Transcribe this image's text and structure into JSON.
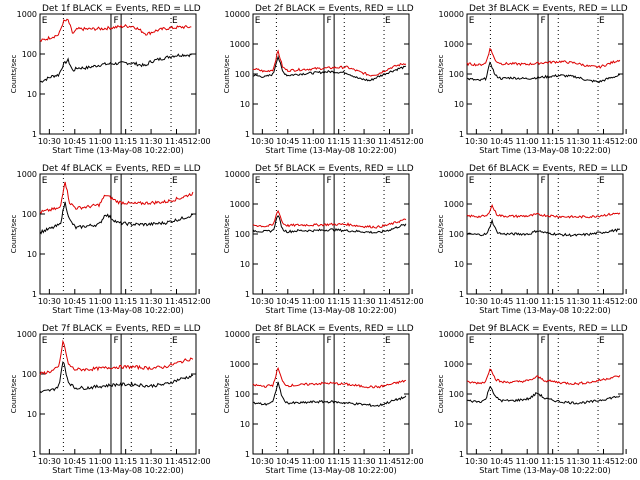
{
  "chart_data": [
    {
      "type": "line",
      "title": "Det 1f BLACK = Events, RED = LLD",
      "xlabel": "Start Time (13-May-08 10:22:00)",
      "ylabel": "Counts/sec",
      "yscale": "log",
      "ylim": [
        1,
        1000
      ],
      "ytick_labels": [
        "1",
        "10",
        "100",
        "1000"
      ],
      "xtick_labels": [
        "10:30",
        "10:45",
        "11:00",
        "11:15",
        "11:30",
        "11:45",
        "12:00"
      ],
      "flags": [
        "E",
        "F",
        "E"
      ],
      "series": [
        {
          "color": "#000000",
          "x": [
            0,
            8,
            12,
            15,
            18,
            21,
            24,
            30,
            40,
            55,
            60,
            68,
            70,
            74,
            80,
            85,
            90,
            97
          ],
          "y": [
            20,
            28,
            30,
            55,
            70,
            38,
            45,
            45,
            55,
            60,
            58,
            50,
            62,
            70,
            80,
            90,
            95,
            95
          ]
        },
        {
          "color": "#dd0000",
          "x": [
            0,
            8,
            12,
            15,
            18,
            21,
            24,
            30,
            40,
            55,
            60,
            68,
            70,
            74,
            80,
            85,
            90,
            97
          ],
          "y": [
            210,
            270,
            300,
            650,
            700,
            320,
            420,
            420,
            430,
            500,
            490,
            320,
            330,
            380,
            430,
            450,
            470,
            470
          ]
        }
      ]
    },
    {
      "type": "line",
      "title": "Det 2f BLACK = Events, RED = LLD",
      "xlabel": "Start Time (13-May-08 10:22:00)",
      "ylabel": "Counts/sec",
      "yscale": "log",
      "ylim": [
        1,
        10000
      ],
      "ytick_labels": [
        "1",
        "10",
        "100",
        "1000",
        "10000"
      ],
      "xtick_labels": [
        "10:30",
        "10:45",
        "11:00",
        "11:15",
        "11:30",
        "11:45",
        "12:00"
      ],
      "flags": [
        "E",
        "F",
        "E"
      ],
      "series": [
        {
          "color": "#000000",
          "x": [
            0,
            8,
            13,
            16,
            19,
            22,
            30,
            40,
            50,
            60,
            68,
            75,
            80,
            88,
            95,
            98
          ],
          "y": [
            90,
            80,
            100,
            400,
            120,
            90,
            100,
            110,
            120,
            110,
            70,
            60,
            80,
            120,
            160,
            170
          ]
        },
        {
          "color": "#dd0000",
          "x": [
            0,
            8,
            13,
            16,
            19,
            22,
            30,
            40,
            50,
            60,
            68,
            75,
            80,
            88,
            95,
            98
          ],
          "y": [
            150,
            120,
            140,
            600,
            170,
            130,
            140,
            150,
            160,
            170,
            120,
            90,
            100,
            160,
            210,
            230
          ]
        }
      ]
    },
    {
      "type": "line",
      "title": "Det 3f BLACK = Events, RED = LLD",
      "xlabel": "Start Time (13-May-08 10:22:00)",
      "ylabel": "Counts/sec",
      "yscale": "log",
      "ylim": [
        1,
        10000
      ],
      "ytick_labels": [
        "1",
        "10",
        "100",
        "1000",
        "10000"
      ],
      "xtick_labels": [
        "10:30",
        "10:45",
        "11:00",
        "11:15",
        "11:30",
        "11:45",
        "12:00"
      ],
      "flags": [
        "E",
        "F",
        "E"
      ],
      "series": [
        {
          "color": "#000000",
          "x": [
            0,
            8,
            12,
            15,
            18,
            22,
            28,
            38,
            50,
            60,
            70,
            78,
            85,
            92,
            98
          ],
          "y": [
            70,
            60,
            70,
            250,
            90,
            70,
            75,
            70,
            80,
            90,
            80,
            60,
            55,
            75,
            90
          ]
        },
        {
          "color": "#dd0000",
          "x": [
            0,
            8,
            12,
            15,
            18,
            22,
            28,
            38,
            50,
            60,
            70,
            78,
            85,
            92,
            98
          ],
          "y": [
            220,
            200,
            230,
            750,
            280,
            220,
            220,
            210,
            240,
            260,
            230,
            180,
            170,
            230,
            300
          ]
        }
      ]
    },
    {
      "type": "line",
      "title": "Det 4f BLACK = Events, RED = LLD",
      "xlabel": "Start Time (13-May-08 10:22:00)",
      "ylabel": "Counts/sec",
      "yscale": "log",
      "ylim": [
        1,
        1000
      ],
      "ytick_labels": [
        "1",
        "10",
        "100",
        "1000"
      ],
      "xtick_labels": [
        "10:30",
        "10:45",
        "11:00",
        "11:15",
        "11:30",
        "11:45",
        "12:00"
      ],
      "flags": [
        "E",
        "F",
        "E"
      ],
      "series": [
        {
          "color": "#000000",
          "x": [
            0,
            8,
            13,
            16,
            19,
            23,
            30,
            38,
            42,
            50,
            60,
            70,
            80,
            90,
            98
          ],
          "y": [
            35,
            45,
            55,
            200,
            70,
            45,
            50,
            55,
            100,
            60,
            55,
            55,
            60,
            75,
            95
          ]
        },
        {
          "color": "#dd0000",
          "x": [
            0,
            8,
            13,
            16,
            19,
            23,
            30,
            38,
            42,
            50,
            60,
            70,
            80,
            90,
            98
          ],
          "y": [
            110,
            130,
            140,
            700,
            190,
            140,
            150,
            170,
            300,
            200,
            180,
            190,
            200,
            250,
            330
          ]
        }
      ]
    },
    {
      "type": "line",
      "title": "Det 5f BLACK = Events, RED = LLD",
      "xlabel": "Start Time (13-May-08 10:22:00)",
      "ylabel": "Counts/sec",
      "yscale": "log",
      "ylim": [
        1,
        10000
      ],
      "ytick_labels": [
        "1",
        "10",
        "100",
        "1000",
        "10000"
      ],
      "xtick_labels": [
        "10:30",
        "10:45",
        "11:00",
        "11:15",
        "11:30",
        "11:45",
        "12:00"
      ],
      "flags": [
        "E",
        "F",
        "E"
      ],
      "series": [
        {
          "color": "#000000",
          "x": [
            0,
            8,
            13,
            16,
            19,
            22,
            30,
            40,
            50,
            60,
            70,
            80,
            88,
            95,
            98
          ],
          "y": [
            130,
            120,
            130,
            450,
            140,
            120,
            130,
            130,
            140,
            130,
            120,
            110,
            140,
            190,
            200
          ]
        },
        {
          "color": "#dd0000",
          "x": [
            0,
            8,
            13,
            16,
            19,
            22,
            30,
            40,
            50,
            60,
            70,
            80,
            88,
            95,
            98
          ],
          "y": [
            200,
            180,
            200,
            650,
            230,
            190,
            200,
            200,
            210,
            210,
            180,
            170,
            210,
            280,
            300
          ]
        }
      ]
    },
    {
      "type": "line",
      "title": "Det 6f BLACK = Events, RED = LLD",
      "xlabel": "Start Time (13-May-08 10:22:00)",
      "ylabel": "Counts/sec",
      "yscale": "log",
      "ylim": [
        1,
        10000
      ],
      "ytick_labels": [
        "1",
        "10",
        "100",
        "1000",
        "10000"
      ],
      "xtick_labels": [
        "10:30",
        "10:45",
        "11:00",
        "11:15",
        "11:30",
        "11:45",
        "12:00"
      ],
      "flags": [
        "E",
        "F",
        "E"
      ],
      "series": [
        {
          "color": "#000000",
          "x": [
            0,
            8,
            13,
            16,
            19,
            22,
            30,
            40,
            45,
            50,
            60,
            70,
            80,
            90,
            98
          ],
          "y": [
            100,
            95,
            100,
            280,
            120,
            100,
            100,
            100,
            130,
            110,
            95,
            90,
            100,
            120,
            140
          ]
        },
        {
          "color": "#dd0000",
          "x": [
            0,
            8,
            13,
            16,
            19,
            22,
            30,
            40,
            45,
            50,
            60,
            70,
            80,
            90,
            98
          ],
          "y": [
            400,
            380,
            400,
            900,
            450,
            400,
            390,
            400,
            450,
            420,
            380,
            370,
            380,
            440,
            500
          ]
        }
      ]
    },
    {
      "type": "line",
      "title": "Det 7f BLACK = Events, RED = LLD",
      "xlabel": "Start Time (13-May-08 10:22:00)",
      "ylabel": "Counts/sec",
      "yscale": "log",
      "ylim": [
        1,
        1000
      ],
      "ytick_labels": [
        "1",
        "10",
        "100",
        "1000"
      ],
      "xtick_labels": [
        "10:30",
        "10:45",
        "11:00",
        "11:15",
        "11:30",
        "11:45",
        "12:00"
      ],
      "flags": [
        "E",
        "F",
        "E"
      ],
      "series": [
        {
          "color": "#000000",
          "x": [
            0,
            8,
            12,
            15,
            18,
            22,
            30,
            40,
            50,
            60,
            70,
            80,
            90,
            98
          ],
          "y": [
            35,
            40,
            50,
            220,
            65,
            45,
            45,
            50,
            55,
            55,
            50,
            55,
            75,
            90
          ]
        },
        {
          "color": "#dd0000",
          "x": [
            0,
            8,
            12,
            15,
            18,
            22,
            30,
            40,
            50,
            60,
            70,
            80,
            90,
            98
          ],
          "y": [
            100,
            120,
            150,
            700,
            180,
            130,
            130,
            140,
            150,
            150,
            140,
            150,
            200,
            250
          ]
        }
      ]
    },
    {
      "type": "line",
      "title": "Det 8f BLACK = Events, RED = LLD",
      "xlabel": "Start Time (13-May-08 10:22:00)",
      "ylabel": "Counts/sec",
      "yscale": "log",
      "ylim": [
        1,
        10000
      ],
      "ytick_labels": [
        "1",
        "10",
        "100",
        "1000",
        "10000"
      ],
      "xtick_labels": [
        "10:30",
        "10:45",
        "11:00",
        "11:15",
        "11:30",
        "11:45",
        "12:00"
      ],
      "flags": [
        "E",
        "F",
        "E"
      ],
      "series": [
        {
          "color": "#000000",
          "x": [
            0,
            8,
            13,
            16,
            19,
            22,
            30,
            40,
            50,
            60,
            70,
            80,
            90,
            98
          ],
          "y": [
            50,
            45,
            55,
            250,
            70,
            50,
            50,
            55,
            55,
            50,
            45,
            40,
            60,
            80
          ]
        },
        {
          "color": "#dd0000",
          "x": [
            0,
            8,
            13,
            16,
            19,
            22,
            30,
            40,
            50,
            60,
            70,
            80,
            90,
            98
          ],
          "y": [
            200,
            180,
            200,
            750,
            250,
            190,
            200,
            220,
            230,
            210,
            180,
            170,
            220,
            280
          ]
        }
      ]
    },
    {
      "type": "line",
      "title": "Det 9f BLACK = Events, RED = LLD",
      "xlabel": "Start Time (13-May-08 10:22:00)",
      "ylabel": "Counts/sec",
      "yscale": "log",
      "ylim": [
        1,
        10000
      ],
      "ytick_labels": [
        "1",
        "10",
        "100",
        "1000",
        "10000"
      ],
      "xtick_labels": [
        "10:30",
        "10:45",
        "11:00",
        "11:15",
        "11:30",
        "11:45",
        "12:00"
      ],
      "flags": [
        "E",
        "F",
        "E"
      ],
      "series": [
        {
          "color": "#000000",
          "x": [
            0,
            8,
            12,
            15,
            18,
            22,
            30,
            40,
            45,
            50,
            60,
            70,
            80,
            90,
            98
          ],
          "y": [
            60,
            55,
            65,
            200,
            80,
            60,
            60,
            70,
            110,
            70,
            55,
            50,
            55,
            70,
            85
          ]
        },
        {
          "color": "#dd0000",
          "x": [
            0,
            8,
            12,
            15,
            18,
            22,
            30,
            40,
            45,
            50,
            60,
            70,
            80,
            90,
            98
          ],
          "y": [
            250,
            230,
            260,
            800,
            320,
            250,
            250,
            280,
            380,
            280,
            240,
            220,
            250,
            330,
            400
          ]
        }
      ]
    }
  ]
}
